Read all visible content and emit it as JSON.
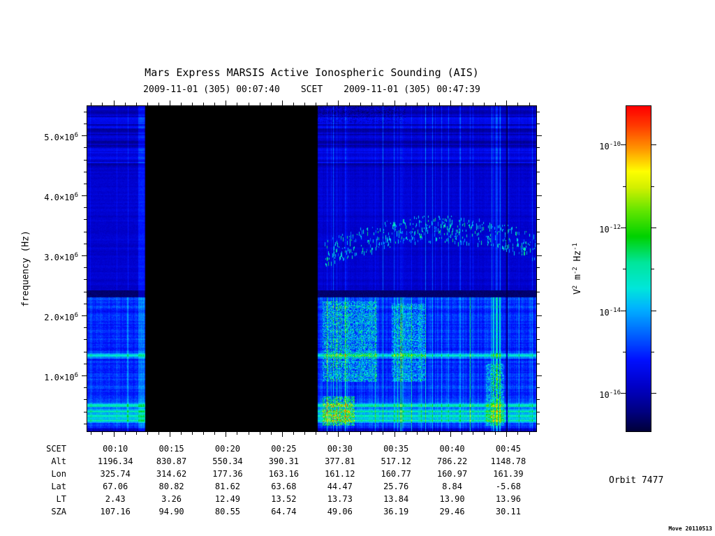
{
  "orbit_label": "Orbit 7477",
  "watermark": "Move 20110513",
  "chart_data": {
    "type": "heatmap",
    "title": "Mars Express MARSIS Active Ionospheric Sounding (AIS)",
    "xlabel": "SCET",
    "ylabel": "frequency (Hz)",
    "time_start": "2009-11-01 (305) 00:07:40",
    "time_end": "2009-11-01 (305) 00:47:39",
    "axes": {
      "x": {
        "min_minutes": 7.667,
        "max_minutes": 47.65,
        "major_every_min": 5,
        "minor_every_min": 1
      },
      "y": {
        "min_mhz": 0.07,
        "max_mhz": 5.49,
        "major_every_mhz": 1.0,
        "minor_every_mhz": 0.2
      }
    },
    "y_ticks": [
      {
        "mantissa": "1.0×10",
        "exp": "6",
        "mhz": 1.0
      },
      {
        "mantissa": "2.0×10",
        "exp": "6",
        "mhz": 2.0
      },
      {
        "mantissa": "3.0×10",
        "exp": "6",
        "mhz": 3.0
      },
      {
        "mantissa": "4.0×10",
        "exp": "6",
        "mhz": 4.0
      },
      {
        "mantissa": "5.0×10",
        "exp": "6",
        "mhz": 5.0
      }
    ],
    "colorbar": {
      "unit_parts": {
        "v": "V",
        "v_exp": "2",
        "m": " m",
        "m_exp": "-2",
        "hz": " Hz",
        "hz_exp": "-1"
      },
      "ticks": [
        {
          "base": "10",
          "exp": "-10",
          "exp_value": -10
        },
        {
          "base": "10",
          "exp": "-12",
          "exp_value": -12
        },
        {
          "base": "10",
          "exp": "-14",
          "exp_value": -14
        },
        {
          "base": "10",
          "exp": "-16",
          "exp_value": -16
        }
      ],
      "minor_ticks_exp": [
        -11,
        -13,
        -15
      ],
      "range_exp": [
        -9.07,
        -16.92
      ]
    },
    "colormap": [
      [
        0.0,
        "#000038"
      ],
      [
        0.06,
        "#000080"
      ],
      [
        0.14,
        "#0000c8"
      ],
      [
        0.22,
        "#0010ff"
      ],
      [
        0.3,
        "#0064ff"
      ],
      [
        0.38,
        "#00b4ff"
      ],
      [
        0.44,
        "#00e6dc"
      ],
      [
        0.52,
        "#00e69b"
      ],
      [
        0.6,
        "#00d200"
      ],
      [
        0.68,
        "#64e600"
      ],
      [
        0.75,
        "#d2f000"
      ],
      [
        0.8,
        "#ffff00"
      ],
      [
        0.87,
        "#ff9600"
      ],
      [
        0.94,
        "#ff3c00"
      ],
      [
        1.0,
        "#ff0000"
      ]
    ],
    "features": {
      "seed": 7477,
      "data_gap_minutes": [
        12.8,
        28.2
      ],
      "cutoff_band_mhz": [
        2.3,
        2.42
      ],
      "bright_lines_mhz": [
        1.33,
        0.5,
        0.4,
        0.325,
        0.25
      ],
      "dark_column_min": 45.05,
      "pre_gap_streak_minutes": [
        12.2,
        12.75
      ],
      "echo_trace": {
        "points_min_mhz": [
          [
            28.8,
            3.05
          ],
          [
            31,
            3.2
          ],
          [
            34,
            3.35
          ],
          [
            37,
            3.45
          ],
          [
            40,
            3.45
          ],
          [
            43,
            3.4
          ],
          [
            45.5,
            3.3
          ],
          [
            47.6,
            3.15
          ]
        ],
        "half_width_mhz": 0.22
      },
      "noise_blobs": [
        {
          "t": [
            28.6,
            33.5
          ],
          "f": [
            0.9,
            2.25
          ],
          "boost": 0.22
        },
        {
          "t": [
            34.8,
            37.8
          ],
          "f": [
            0.9,
            2.2
          ],
          "boost": 0.18
        },
        {
          "t": [
            28.6,
            31.5
          ],
          "f": [
            0.16,
            0.65
          ],
          "boost": 0.3
        },
        {
          "t": [
            43.2,
            44.8
          ],
          "f": [
            0.16,
            1.2
          ],
          "boost": 0.18
        }
      ]
    },
    "ephemeris": {
      "rows": [
        {
          "label": "SCET",
          "values": [
            "00:10",
            "00:15",
            "00:20",
            "00:25",
            "00:30",
            "00:35",
            "00:40",
            "00:45"
          ]
        },
        {
          "label": "Alt",
          "values": [
            "1196.34",
            "830.87",
            "550.34",
            "390.31",
            "377.81",
            "517.12",
            "786.22",
            "1148.78"
          ]
        },
        {
          "label": "Lon",
          "values": [
            "325.74",
            "314.62",
            "177.36",
            "163.16",
            "161.12",
            "160.77",
            "160.97",
            "161.39"
          ]
        },
        {
          "label": "Lat",
          "values": [
            "67.06",
            "80.82",
            "81.62",
            "63.68",
            "44.47",
            "25.76",
            "8.84",
            "-5.68"
          ]
        },
        {
          "label": "LT",
          "values": [
            "2.43",
            "3.26",
            "12.49",
            "13.52",
            "13.73",
            "13.84",
            "13.90",
            "13.96"
          ]
        },
        {
          "label": "SZA",
          "values": [
            "107.16",
            "94.90",
            "80.55",
            "64.74",
            "49.06",
            "36.19",
            "29.46",
            "30.11"
          ]
        }
      ]
    }
  }
}
